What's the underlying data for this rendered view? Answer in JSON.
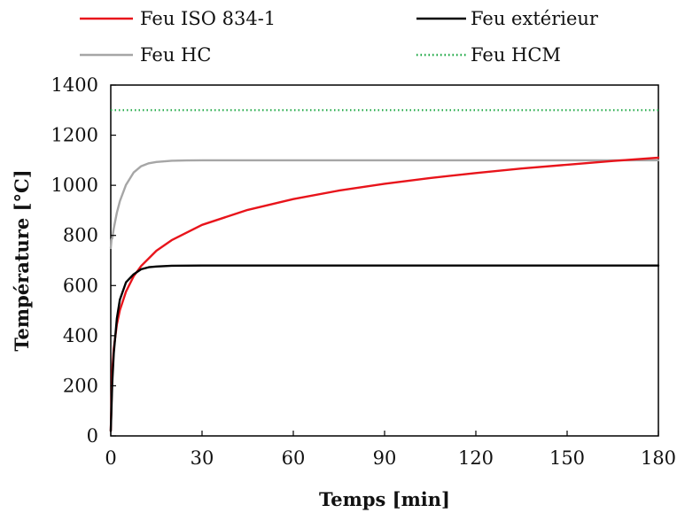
{
  "chart_data": {
    "type": "line",
    "xlabel": "Temps [min]",
    "ylabel": "Température [°C]",
    "xlim": [
      0,
      180
    ],
    "ylim": [
      0,
      1400
    ],
    "xticks": [
      0,
      30,
      60,
      90,
      120,
      150,
      180
    ],
    "yticks": [
      0,
      200,
      400,
      600,
      800,
      1000,
      1200,
      1400
    ],
    "grid": false,
    "legend_position": "top",
    "series": [
      {
        "name": "Feu ISO 834-1",
        "color": "#e8141b",
        "style": "solid",
        "x": [
          0,
          0.5,
          1,
          2,
          3,
          5,
          7.5,
          10,
          15,
          20,
          30,
          45,
          60,
          75,
          90,
          105,
          120,
          135,
          150,
          165,
          180
        ],
        "y": [
          20,
          261,
          349,
          445,
          502,
          576,
          637,
          678,
          739,
          781,
          842,
          902,
          945,
          979,
          1006,
          1029,
          1049,
          1067,
          1082,
          1097,
          1110
        ]
      },
      {
        "name": "Feu extérieur",
        "color": "#000000",
        "style": "solid",
        "x": [
          0,
          0.5,
          1,
          2,
          3,
          5,
          7.5,
          10,
          12.5,
          15,
          20,
          30,
          60,
          90,
          120,
          150,
          180
        ],
        "y": [
          20,
          214,
          330,
          469,
          544,
          613,
          645,
          665,
          673,
          676,
          679,
          680,
          680,
          680,
          680,
          680,
          680
        ]
      },
      {
        "name": "Feu HC",
        "color": "#a6a6a6",
        "style": "solid",
        "x": [
          0,
          0.25,
          0.5,
          1,
          2,
          3,
          5,
          7.5,
          10,
          12.5,
          15,
          20,
          25,
          30,
          60,
          90,
          120,
          150,
          180
        ],
        "y": [
          750,
          785,
          788,
          828,
          891,
          937,
          1002,
          1051,
          1076,
          1088,
          1093,
          1098,
          1099,
          1100,
          1100,
          1100,
          1100,
          1100,
          1100
        ]
      },
      {
        "name": "Feu HCM",
        "color": "#1fa845",
        "style": "dotted",
        "x": [
          0,
          180
        ],
        "y": [
          1300,
          1300
        ]
      }
    ]
  }
}
